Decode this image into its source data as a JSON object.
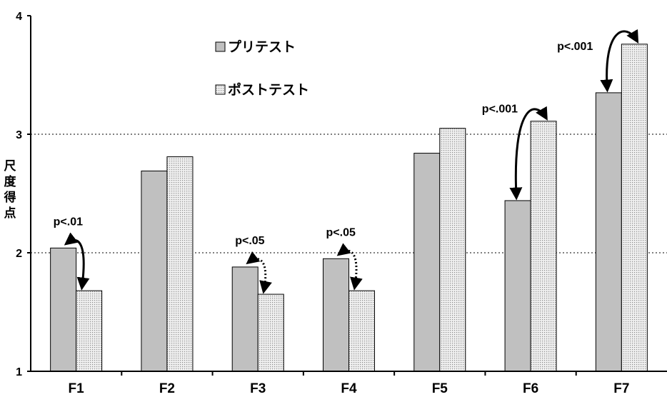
{
  "chart_data": {
    "type": "bar",
    "ylabel": "尺度得点",
    "xlabel": "",
    "ylim": [
      1,
      4
    ],
    "yticks": [
      1,
      2,
      3,
      4
    ],
    "gridlines": [
      2,
      3
    ],
    "legend_position": "top-left",
    "categories": [
      "F1",
      "F2",
      "F3",
      "F4",
      "F5",
      "F6",
      "F7"
    ],
    "series": [
      {
        "name": "プリテスト",
        "color": "#c0c0c0",
        "pattern": "solid",
        "values": [
          2.04,
          2.69,
          1.88,
          1.95,
          2.84,
          2.44,
          3.35
        ]
      },
      {
        "name": "ポストテスト",
        "color": "#e4e4e4",
        "pattern": "dotted",
        "values": [
          1.68,
          2.81,
          1.65,
          1.68,
          3.05,
          3.11,
          3.76
        ]
      }
    ],
    "annotations": [
      {
        "category": "F1",
        "text": "p<.01",
        "arrow": "solid"
      },
      {
        "category": "F3",
        "text": "p<.05",
        "arrow": "dotted"
      },
      {
        "category": "F4",
        "text": "p<.05",
        "arrow": "dotted"
      },
      {
        "category": "F6",
        "text": "p<.001",
        "arrow": "solid"
      },
      {
        "category": "F7",
        "text": "p<.001",
        "arrow": "solid"
      }
    ]
  }
}
